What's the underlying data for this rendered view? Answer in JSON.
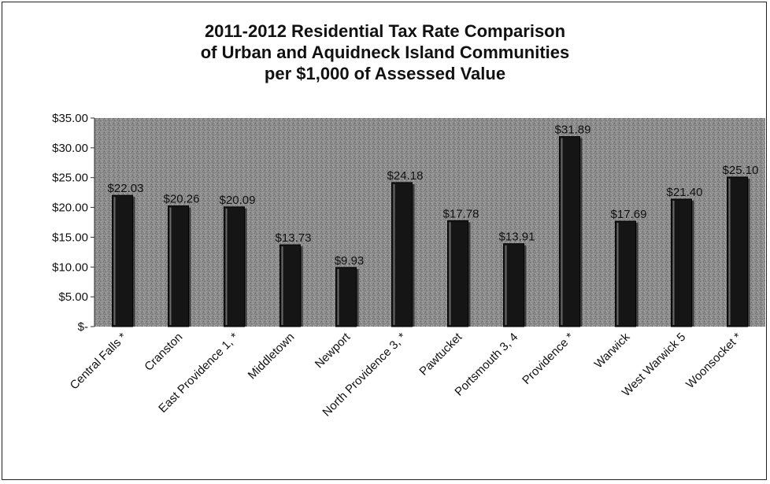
{
  "chart_data": {
    "type": "bar",
    "title_lines": [
      "2011-2012 Residential Tax Rate Comparison",
      "of Urban and Aquidneck Island Communities",
      "per $1,000 of Assessed Value"
    ],
    "categories": [
      "Central Falls *",
      "Cranston",
      "East Providence 1, *",
      "Middletown",
      "Newport",
      "North Providence  3, *",
      "Pawtucket",
      "Portsmouth  3, 4",
      "Providence *",
      "Warwick",
      "West Warwick 5",
      "Woonsocket *"
    ],
    "values": [
      22.03,
      20.26,
      20.09,
      13.73,
      9.93,
      24.18,
      17.78,
      13.91,
      31.89,
      17.69,
      21.4,
      25.1
    ],
    "value_labels": [
      "$22.03",
      "$20.26",
      "$20.09",
      "$13.73",
      "$9.93",
      "$24.18",
      "$17.78",
      "$13.91",
      "$31.89",
      "$17.69",
      "$21.40",
      "$25.10"
    ],
    "ylim": [
      0,
      35
    ],
    "yticks": [
      0,
      5,
      10,
      15,
      20,
      25,
      30,
      35
    ],
    "ytick_labels": [
      "$-",
      "$5.00",
      "$10.00",
      "$15.00",
      "$20.00",
      "$25.00",
      "$30.00",
      "$35.00"
    ],
    "xlabel": "",
    "ylabel": "",
    "grid": false,
    "legend": "none",
    "colors": {
      "plot_background": "#8c8c8c",
      "bar_fill": "#151515",
      "bar_highlight": "#6a6a6a"
    }
  }
}
